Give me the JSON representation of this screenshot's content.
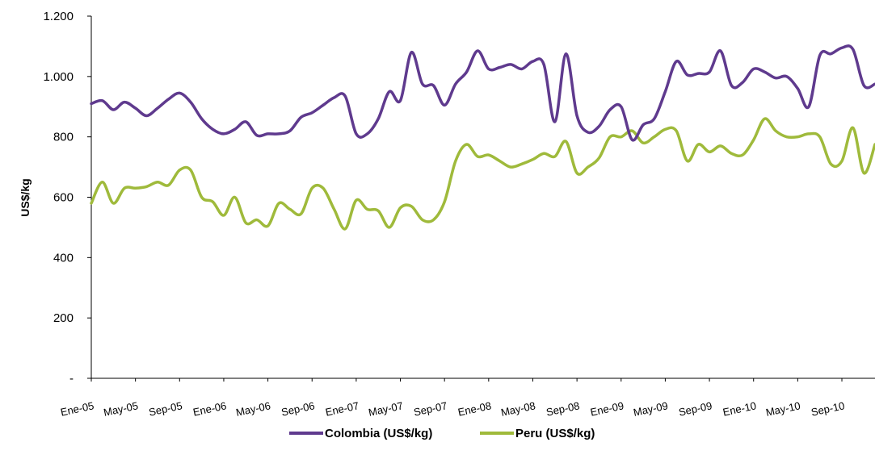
{
  "chart_data": {
    "type": "line",
    "title": "",
    "xlabel": "",
    "ylabel": "US$/kg",
    "ylim": [
      0,
      1200
    ],
    "y_ticks": [
      {
        "value": 0,
        "label": "-"
      },
      {
        "value": 200,
        "label": "200"
      },
      {
        "value": 400,
        "label": "400"
      },
      {
        "value": 600,
        "label": "600"
      },
      {
        "value": 800,
        "label": "800"
      },
      {
        "value": 1000,
        "label": "1.000"
      },
      {
        "value": 1200,
        "label": "1.200"
      }
    ],
    "x_tick_labels": [
      "Ene-05",
      "May-05",
      "Sep-05",
      "Ene-06",
      "May-06",
      "Sep-06",
      "Ene-07",
      "May-07",
      "Sep-07",
      "Ene-08",
      "May-08",
      "Sep-08",
      "Ene-09",
      "May-09",
      "Sep-09",
      "Ene-10",
      "May-10",
      "Sep-10"
    ],
    "x_tick_interval_months": 4,
    "grid": false,
    "legend_position": "bottom",
    "series": [
      {
        "name": "Colombia (US$/kg)",
        "color": "#5f3a8e",
        "values": [
          910,
          920,
          890,
          915,
          895,
          870,
          895,
          925,
          945,
          915,
          860,
          825,
          810,
          825,
          850,
          805,
          810,
          810,
          820,
          865,
          880,
          905,
          930,
          935,
          810,
          810,
          860,
          950,
          920,
          1080,
          975,
          970,
          905,
          975,
          1015,
          1085,
          1025,
          1030,
          1040,
          1025,
          1050,
          1040,
          850,
          1075,
          870,
          815,
          835,
          890,
          900,
          790,
          840,
          860,
          950,
          1050,
          1005,
          1010,
          1015,
          1085,
          970,
          980,
          1025,
          1015,
          995,
          1000,
          960,
          900,
          1070,
          1075,
          1095,
          1090,
          970,
          975
        ]
      },
      {
        "name": "Peru (US$/kg)",
        "color": "#9fba3b",
        "values": [
          580,
          650,
          580,
          630,
          630,
          635,
          650,
          640,
          690,
          690,
          600,
          585,
          540,
          600,
          515,
          525,
          505,
          580,
          560,
          545,
          630,
          630,
          560,
          495,
          590,
          560,
          555,
          500,
          565,
          570,
          525,
          525,
          585,
          720,
          775,
          735,
          740,
          720,
          700,
          710,
          725,
          745,
          735,
          785,
          680,
          700,
          730,
          800,
          800,
          820,
          780,
          800,
          825,
          820,
          720,
          775,
          750,
          770,
          745,
          740,
          790,
          860,
          820,
          800,
          800,
          810,
          800,
          710,
          720,
          830,
          680,
          775
        ]
      }
    ]
  }
}
